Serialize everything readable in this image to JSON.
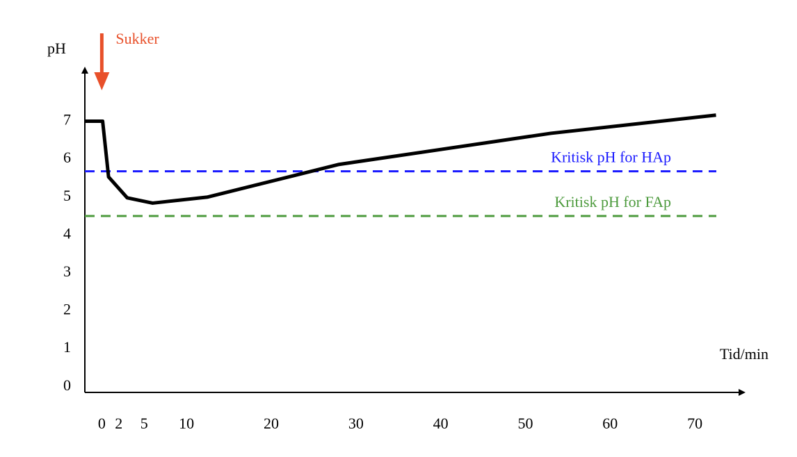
{
  "chart_data": {
    "type": "line",
    "x_label": "Tid/min",
    "y_label": "pH",
    "annotation": {
      "text": "Sukker",
      "x": 0,
      "color": "#e8502a"
    },
    "series": [
      {
        "color": "#000000",
        "x": [
          -2,
          0.1,
          0.8,
          3,
          6,
          12.5,
          28,
          53,
          72.5
        ],
        "values": [
          7.0,
          7.0,
          5.53,
          4.98,
          4.84,
          5.0,
          5.86,
          6.68,
          7.16
        ]
      }
    ],
    "reference_lines": [
      {
        "label": "Kritisk pH for HAp",
        "value": 5.68,
        "color": "#1a1aff"
      },
      {
        "label": "Kritisk pH for FAp",
        "value": 4.5,
        "color": "#4c9a3c"
      }
    ],
    "xlim": [
      -2,
      75
    ],
    "ylim": [
      -0.15,
      8.4
    ],
    "xticks": [
      0,
      2,
      5,
      10,
      20,
      30,
      40,
      50,
      60,
      70
    ],
    "yticks": [
      0,
      1,
      2,
      3,
      4,
      5,
      6,
      7
    ],
    "grid": false
  }
}
